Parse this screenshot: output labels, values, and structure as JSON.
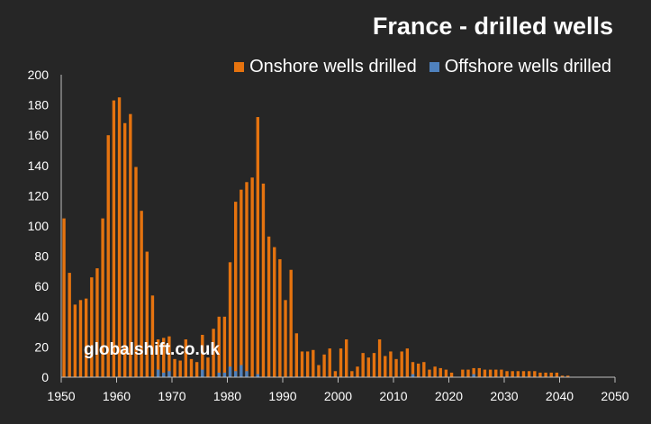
{
  "chart_data": {
    "type": "bar",
    "title": "France - drilled wells",
    "watermark": "globalshift.co.uk",
    "xlabel": "",
    "ylabel": "",
    "ylim": [
      0,
      200
    ],
    "xlim": [
      1950,
      2050
    ],
    "grid": false,
    "legend_position": "top-right",
    "y_ticks": [
      0,
      20,
      40,
      60,
      80,
      100,
      120,
      140,
      160,
      180,
      200
    ],
    "x_ticks": [
      1950,
      1960,
      1970,
      1980,
      1990,
      2000,
      2010,
      2020,
      2030,
      2040,
      2050
    ],
    "years_start": 1950,
    "series": [
      {
        "name": "Onshore wells drilled",
        "color": "#e5730f",
        "values": [
          105,
          69,
          48,
          51,
          52,
          66,
          72,
          105,
          160,
          183,
          185,
          168,
          174,
          139,
          110,
          83,
          54,
          25,
          26,
          27,
          12,
          11,
          25,
          12,
          10,
          28,
          13,
          32,
          40,
          40,
          76,
          116,
          124,
          129,
          132,
          172,
          128,
          93,
          86,
          78,
          51,
          71,
          29,
          17,
          17,
          18,
          8,
          15,
          19,
          4,
          19,
          25,
          4,
          7,
          16,
          13,
          16,
          25,
          14,
          17,
          12,
          17,
          19,
          10,
          9,
          10,
          5,
          7,
          6,
          5,
          3,
          0,
          5,
          5,
          6,
          6,
          5,
          5,
          5,
          5,
          4,
          4,
          4,
          4,
          4,
          4,
          3,
          3,
          3,
          3,
          1,
          1,
          0,
          0,
          0,
          0,
          0,
          0,
          0,
          0,
          0
        ]
      },
      {
        "name": "Offshore wells drilled",
        "color": "#4f81bd",
        "values": [
          0,
          0,
          0,
          0,
          0,
          0,
          0,
          0,
          0,
          0,
          0,
          0,
          0,
          0,
          0,
          0,
          0,
          5,
          3,
          4,
          0,
          0,
          0,
          0,
          0,
          5,
          0,
          0,
          3,
          3,
          7,
          4,
          8,
          4,
          0,
          2,
          0,
          0,
          0,
          0,
          0,
          0,
          0,
          0,
          0,
          0,
          0,
          0,
          0,
          0,
          0,
          0,
          0,
          0,
          0,
          0,
          0,
          0,
          0,
          0,
          0,
          0,
          0,
          2,
          0,
          0,
          0,
          0,
          0,
          0,
          0,
          0,
          0,
          0,
          2,
          0,
          0,
          0,
          0,
          0,
          0,
          0,
          0,
          0,
          0,
          0,
          0,
          0,
          0,
          0,
          0,
          0,
          0,
          0,
          0,
          0,
          0,
          0,
          0,
          0,
          0
        ]
      }
    ]
  }
}
